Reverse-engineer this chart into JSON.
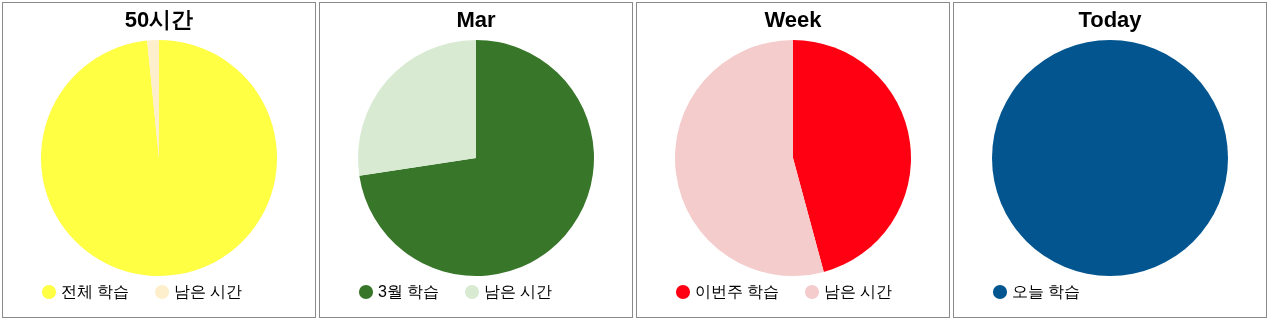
{
  "chart_data": [
    {
      "type": "pie",
      "title": "50시간",
      "categories": [
        "전체 학습",
        "남은 시간"
      ],
      "values": [
        98.4,
        1.6
      ],
      "colors": [
        "#ffff44",
        "#fdefcc"
      ],
      "legend": "bottom"
    },
    {
      "type": "pie",
      "title": "Mar",
      "categories": [
        "3월 학습",
        "남은 시간"
      ],
      "values": [
        72.6,
        27.4
      ],
      "colors": [
        "#38762a",
        "#d9ead3"
      ],
      "legend": "bottom"
    },
    {
      "type": "pie",
      "title": "Week",
      "categories": [
        "이번주 학습",
        "남은 시간"
      ],
      "values": [
        45.8,
        54.2
      ],
      "colors": [
        "#ff0013",
        "#f4cccc"
      ],
      "legend": "bottom"
    },
    {
      "type": "pie",
      "title": "Today",
      "categories": [
        "오늘 학습"
      ],
      "values": [
        100
      ],
      "colors": [
        "#02558f"
      ],
      "legend": "bottom"
    }
  ]
}
